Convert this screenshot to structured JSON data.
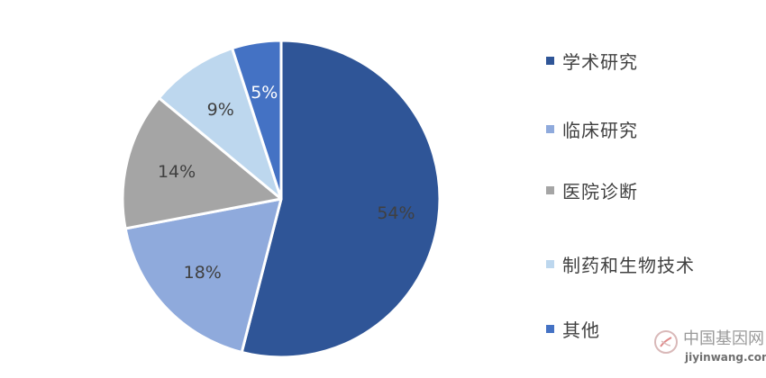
{
  "chart_data": {
    "type": "pie",
    "title": "",
    "categories": [
      "学术研究",
      "临床研究",
      "医院诊断",
      "制药和生物技术",
      "其他"
    ],
    "values": [
      54,
      18,
      14,
      9,
      5
    ],
    "labels": [
      "54%",
      "18%",
      "14%",
      "9%",
      "5%"
    ],
    "colors": [
      "#2f5597",
      "#8faadc",
      "#a5a5a5",
      "#bdd7ee",
      "#4472c4"
    ],
    "label_colors": [
      "#404040",
      "#404040",
      "#404040",
      "#404040",
      "#ffffff"
    ],
    "legend_position": "right",
    "start_angle_deg": 0,
    "direction": "clockwise"
  },
  "watermark": {
    "title": "中国基因网",
    "url": "jiyinwang.com"
  }
}
